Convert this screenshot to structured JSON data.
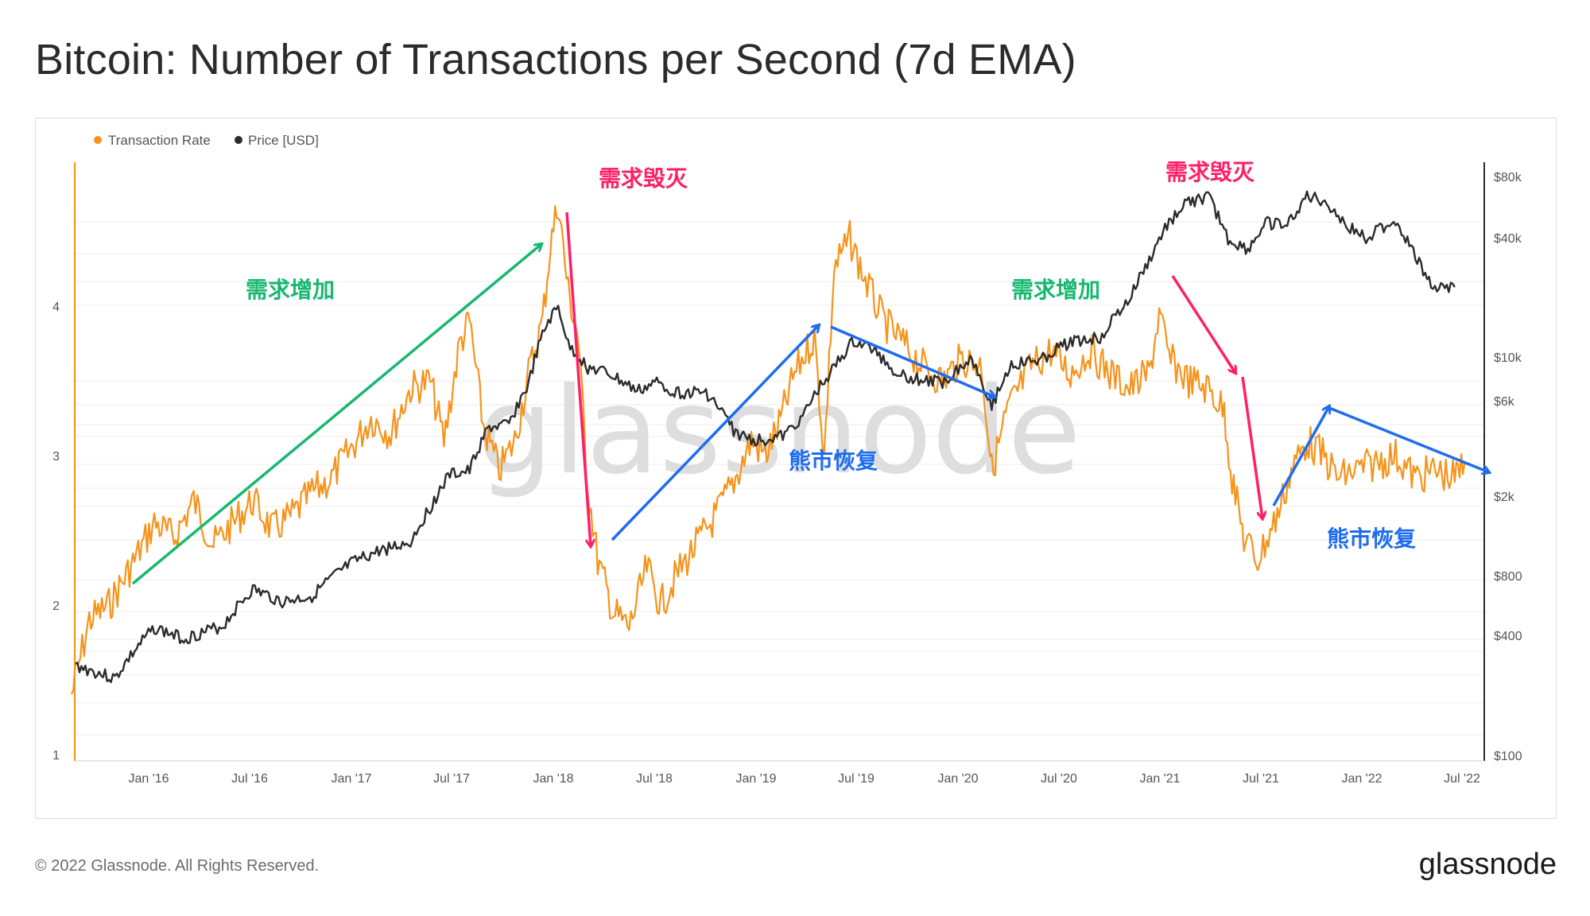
{
  "title": "Bitcoin: Number of Transactions per Second (7d EMA)",
  "footer": {
    "copyright": "© 2022 Glassnode. All Rights Reserved.",
    "brand": "glassnode"
  },
  "watermark": "glassnode",
  "colors": {
    "tx": "#f7931a",
    "price": "#2b2b2b",
    "green": "#16b86e",
    "red": "#ff1f66",
    "blue": "#1f6cf0"
  },
  "chart_data": {
    "type": "line",
    "title": "Bitcoin: Number of Transactions per Second (7d EMA)",
    "x_range": [
      "2015-07",
      "2022-08"
    ],
    "x_ticks": [
      "Jan '16",
      "Jul '16",
      "Jan '17",
      "Jul '17",
      "Jan '18",
      "Jul '18",
      "Jan '19",
      "Jul '19",
      "Jan '20",
      "Jul '20",
      "Jan '21",
      "Jul '21",
      "Jan '22",
      "Jul '22"
    ],
    "left_axis": {
      "label": "Transaction Rate",
      "scale": "linear",
      "ylim": [
        1,
        4.9
      ],
      "ticks": [
        "1",
        "2",
        "3",
        "4"
      ]
    },
    "right_axis": {
      "label": "Price [USD]",
      "scale": "log",
      "ylim": [
        100,
        100000
      ],
      "ticks": [
        "$100",
        "$400",
        "$800",
        "$2k",
        "$6k",
        "$10k",
        "$40k",
        "$80k"
      ]
    },
    "legend": {
      "position": "top-left",
      "items": [
        {
          "name": "Transaction Rate",
          "color": "#f7931a"
        },
        {
          "name": "Price [USD]",
          "color": "#2b2b2b"
        }
      ]
    },
    "series": [
      {
        "name": "Transaction Rate",
        "axis": "left",
        "points": [
          [
            2015.53,
            1.4
          ],
          [
            2015.62,
            1.9
          ],
          [
            2015.72,
            2.0
          ],
          [
            2015.85,
            2.3
          ],
          [
            2015.95,
            2.55
          ],
          [
            2016.05,
            2.45
          ],
          [
            2016.15,
            2.7
          ],
          [
            2016.25,
            2.4
          ],
          [
            2016.35,
            2.55
          ],
          [
            2016.45,
            2.7
          ],
          [
            2016.55,
            2.5
          ],
          [
            2016.65,
            2.6
          ],
          [
            2016.75,
            2.75
          ],
          [
            2016.85,
            2.85
          ],
          [
            2016.95,
            3.05
          ],
          [
            2017.05,
            3.25
          ],
          [
            2017.15,
            3.15
          ],
          [
            2017.25,
            3.45
          ],
          [
            2017.35,
            3.5
          ],
          [
            2017.42,
            3.1
          ],
          [
            2017.5,
            3.75
          ],
          [
            2017.55,
            3.9
          ],
          [
            2017.62,
            3.2
          ],
          [
            2017.7,
            2.9
          ],
          [
            2017.78,
            3.1
          ],
          [
            2017.85,
            3.55
          ],
          [
            2017.92,
            3.9
          ],
          [
            2017.96,
            4.4
          ],
          [
            2018.0,
            4.7
          ],
          [
            2018.05,
            4.1
          ],
          [
            2018.1,
            3.8
          ],
          [
            2018.15,
            2.8
          ],
          [
            2018.2,
            2.3
          ],
          [
            2018.28,
            1.95
          ],
          [
            2018.36,
            1.85
          ],
          [
            2018.45,
            2.25
          ],
          [
            2018.52,
            2.0
          ],
          [
            2018.6,
            2.2
          ],
          [
            2018.7,
            2.4
          ],
          [
            2018.8,
            2.6
          ],
          [
            2018.9,
            2.85
          ],
          [
            2018.98,
            3.1
          ],
          [
            2019.05,
            3.0
          ],
          [
            2019.12,
            3.2
          ],
          [
            2019.2,
            3.55
          ],
          [
            2019.3,
            3.8
          ],
          [
            2019.35,
            3.0
          ],
          [
            2019.4,
            4.25
          ],
          [
            2019.48,
            4.45
          ],
          [
            2019.55,
            4.2
          ],
          [
            2019.65,
            3.9
          ],
          [
            2019.75,
            3.75
          ],
          [
            2019.85,
            3.6
          ],
          [
            2019.95,
            3.5
          ],
          [
            2020.05,
            3.65
          ],
          [
            2020.15,
            3.6
          ],
          [
            2020.2,
            2.9
          ],
          [
            2020.28,
            3.3
          ],
          [
            2020.4,
            3.6
          ],
          [
            2020.5,
            3.7
          ],
          [
            2020.6,
            3.55
          ],
          [
            2020.7,
            3.7
          ],
          [
            2020.8,
            3.55
          ],
          [
            2020.9,
            3.45
          ],
          [
            2021.0,
            3.55
          ],
          [
            2021.05,
            3.95
          ],
          [
            2021.1,
            3.65
          ],
          [
            2021.2,
            3.5
          ],
          [
            2021.3,
            3.45
          ],
          [
            2021.38,
            3.3
          ],
          [
            2021.42,
            2.85
          ],
          [
            2021.48,
            2.45
          ],
          [
            2021.55,
            2.3
          ],
          [
            2021.65,
            2.6
          ],
          [
            2021.72,
            2.9
          ],
          [
            2021.8,
            3.1
          ],
          [
            2021.88,
            3.0
          ],
          [
            2021.96,
            2.85
          ],
          [
            2022.05,
            2.9
          ],
          [
            2022.15,
            2.95
          ],
          [
            2022.25,
            3.0
          ],
          [
            2022.35,
            2.85
          ],
          [
            2022.45,
            2.9
          ],
          [
            2022.55,
            2.85
          ],
          [
            2022.6,
            2.95
          ]
        ]
      },
      {
        "name": "Price [USD]",
        "axis": "right",
        "points": [
          [
            2015.55,
            280
          ],
          [
            2015.65,
            260
          ],
          [
            2015.75,
            240
          ],
          [
            2015.85,
            330
          ],
          [
            2015.95,
            430
          ],
          [
            2016.1,
            380
          ],
          [
            2016.3,
            440
          ],
          [
            2016.45,
            670
          ],
          [
            2016.6,
            580
          ],
          [
            2016.75,
            620
          ],
          [
            2016.95,
            900
          ],
          [
            2017.1,
            1050
          ],
          [
            2017.25,
            1150
          ],
          [
            2017.35,
            1700
          ],
          [
            2017.45,
            2500
          ],
          [
            2017.55,
            2600
          ],
          [
            2017.65,
            4300
          ],
          [
            2017.75,
            4400
          ],
          [
            2017.85,
            7000
          ],
          [
            2017.95,
            14500
          ],
          [
            2018.0,
            17000
          ],
          [
            2018.05,
            11000
          ],
          [
            2018.15,
            8500
          ],
          [
            2018.25,
            8000
          ],
          [
            2018.4,
            6500
          ],
          [
            2018.5,
            7200
          ],
          [
            2018.6,
            6400
          ],
          [
            2018.75,
            6400
          ],
          [
            2018.9,
            4000
          ],
          [
            2019.0,
            3700
          ],
          [
            2019.15,
            3900
          ],
          [
            2019.25,
            5000
          ],
          [
            2019.4,
            8500
          ],
          [
            2019.5,
            11500
          ],
          [
            2019.6,
            10500
          ],
          [
            2019.7,
            8300
          ],
          [
            2019.8,
            7500
          ],
          [
            2019.95,
            7200
          ],
          [
            2020.1,
            9500
          ],
          [
            2020.2,
            5400
          ],
          [
            2020.3,
            8800
          ],
          [
            2020.45,
            9300
          ],
          [
            2020.6,
            11500
          ],
          [
            2020.75,
            12000
          ],
          [
            2020.9,
            18500
          ],
          [
            2021.0,
            29000
          ],
          [
            2021.1,
            45000
          ],
          [
            2021.2,
            57000
          ],
          [
            2021.3,
            60000
          ],
          [
            2021.4,
            37000
          ],
          [
            2021.5,
            33000
          ],
          [
            2021.6,
            45000
          ],
          [
            2021.7,
            43000
          ],
          [
            2021.8,
            61000
          ],
          [
            2021.9,
            57000
          ],
          [
            2022.0,
            43000
          ],
          [
            2022.1,
            38000
          ],
          [
            2022.25,
            46000
          ],
          [
            2022.35,
            30000
          ],
          [
            2022.45,
            21000
          ],
          [
            2022.55,
            21500
          ]
        ]
      }
    ],
    "annotations": [
      {
        "text": "需求增加",
        "color": "#16b86e"
      },
      {
        "text": "需求毁灭",
        "color": "#ff1f66"
      },
      {
        "text": "熊市恢复",
        "color": "#1f6cf0"
      },
      {
        "text": "需求增加",
        "color": "#16b86e"
      },
      {
        "text": "需求毁灭",
        "color": "#ff1f66"
      },
      {
        "text": "熊市恢复",
        "color": "#1f6cf0"
      }
    ]
  }
}
